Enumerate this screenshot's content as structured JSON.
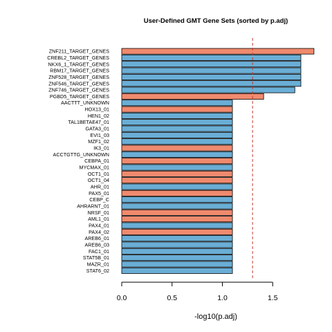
{
  "chart_data": {
    "type": "bar",
    "orientation": "horizontal",
    "title": "User-Defined GMT Gene Sets (sorted by p.adj)",
    "xlabel": "-log10(p.adj)",
    "ylabel": "",
    "xlim": [
      0,
      1.95
    ],
    "xticks": [
      "0.0",
      "0.5",
      "1.0",
      "1.5"
    ],
    "threshold": 1.3,
    "threshold_color": "#c0392b",
    "grid": false,
    "legend": "none",
    "colors": {
      "orange": "#f08a6e",
      "blue": "#6aaed6",
      "outline": "#000000"
    },
    "categories": [
      "ZNF211_TARGET_GENES",
      "CREBL2_TARGET_GENES",
      "NKX6_1_TARGET_GENES",
      "RBM17_TARGET_GENES",
      "ZNF528_TARGET_GENES",
      "ZNF546_TARGET_GENES",
      "ZNF746_TARGET_GENES",
      "PGBD5_TARGET_GENES",
      "AACTTT_UNKNOWN",
      "HOX13_01",
      "HEN1_02",
      "TAL1BETAE47_01",
      "GATA3_01",
      "EVI1_03",
      "MZF1_02",
      "IK3_01",
      "ACCTGTTG_UNKNOWN",
      "CEBPA_01",
      "MYCMAX_01",
      "OCT1_01",
      "OCT1_04",
      "AHR_01",
      "PAX5_01",
      "CEBP_C",
      "AHRARNT_01",
      "NRSF_01",
      "AML1_01",
      "PAX4_01",
      "PAX4_02",
      "AREB6_01",
      "AREB6_03",
      "FAC1_01",
      "STAT5B_01",
      "MAZR_01",
      "STAT6_02"
    ],
    "values": [
      1.91,
      1.78,
      1.78,
      1.78,
      1.78,
      1.78,
      1.72,
      1.41,
      1.1,
      1.1,
      1.1,
      1.1,
      1.1,
      1.1,
      1.1,
      1.1,
      1.1,
      1.1,
      1.1,
      1.1,
      1.1,
      1.1,
      1.1,
      1.1,
      1.1,
      1.1,
      1.1,
      1.1,
      1.1,
      1.1,
      1.1,
      1.1,
      1.1,
      1.1,
      1.1
    ],
    "bar_colors": [
      "orange",
      "blue",
      "blue",
      "blue",
      "blue",
      "blue",
      "blue",
      "orange",
      "blue",
      "orange",
      "blue",
      "blue",
      "blue",
      "blue",
      "blue",
      "orange",
      "blue",
      "orange",
      "blue",
      "orange",
      "orange",
      "blue",
      "orange",
      "blue",
      "blue",
      "orange",
      "orange",
      "blue",
      "orange",
      "blue",
      "blue",
      "blue",
      "blue",
      "blue",
      "blue"
    ]
  }
}
